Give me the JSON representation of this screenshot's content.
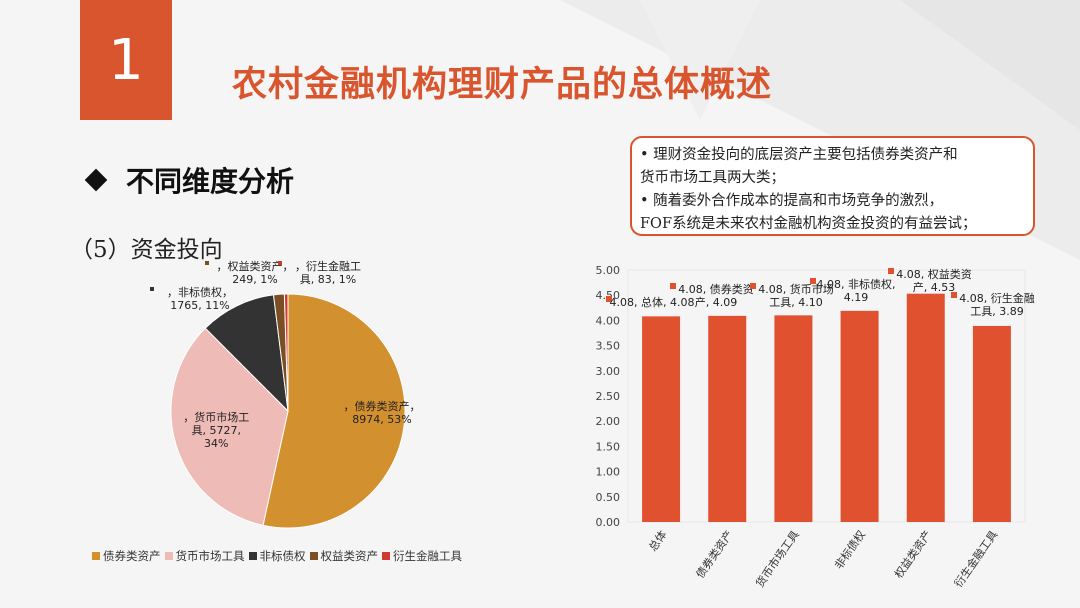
{
  "slide": {
    "number": "1",
    "title": "农村金融机构理财产品的总体概述",
    "section": "不同维度分析",
    "subsection": "（5）资金投向",
    "notes": [
      "• 理财资金投向的底层资产主要包括债券类资产和",
      "货币市场工具两大类；",
      "• 随着委外合作成本的提高和市场竞争的激烈，",
      "FOF系统是未来农村金融机构资金投资的有益尝试；"
    ],
    "accent": "#d9552e"
  },
  "chart_data": [
    {
      "type": "pie",
      "categories": [
        "债券类资产",
        "货币市场工具",
        "非标债权",
        "权益类资产",
        "衍生金融工具"
      ],
      "values": [
        8974,
        5727,
        1765,
        249,
        83
      ],
      "percents": [
        "53%",
        "34%",
        "11%",
        "1%",
        "1%"
      ],
      "colors": [
        "#d3902f",
        "#eebbb7",
        "#333333",
        "#7b4e24",
        "#cf3c2f"
      ],
      "data_labels": [
        [
          "，债券类资产，",
          "8974, 53%"
        ],
        [
          "，货币市场工",
          "具, 5727,",
          "34%"
        ],
        [
          "，非标债权，",
          "1765, 11%"
        ],
        [
          "，权益类资产，",
          "249, 1%"
        ],
        [
          "，衍生金融工",
          "具, 83, 1%"
        ]
      ],
      "legend": "bottom"
    },
    {
      "type": "bar",
      "categories": [
        "总体",
        "债券类资产",
        "货币市场工具",
        "非标债权",
        "权益类资产",
        "衍生金融工具"
      ],
      "values": [
        4.08,
        4.09,
        4.1,
        4.19,
        4.53,
        3.89
      ],
      "color": "#e0522f",
      "ylim": [
        0,
        5
      ],
      "yticks": [
        "0.00",
        "0.50",
        "1.00",
        "1.50",
        "2.00",
        "2.50",
        "3.00",
        "3.50",
        "4.00",
        "4.50",
        "5.00"
      ],
      "data_labels": [
        [
          "4.08, 总体, 4.08"
        ],
        [
          "4.08, 债券类资",
          "产, 4.09"
        ],
        [
          "4.08, 货币市场",
          "工具, 4.10"
        ],
        [
          "4.08, 非标债权,",
          "4.19"
        ],
        [
          "4.08, 权益类资",
          "产, 4.53"
        ],
        [
          "4.08, 衍生金融",
          "工具, 3.89"
        ]
      ]
    }
  ]
}
